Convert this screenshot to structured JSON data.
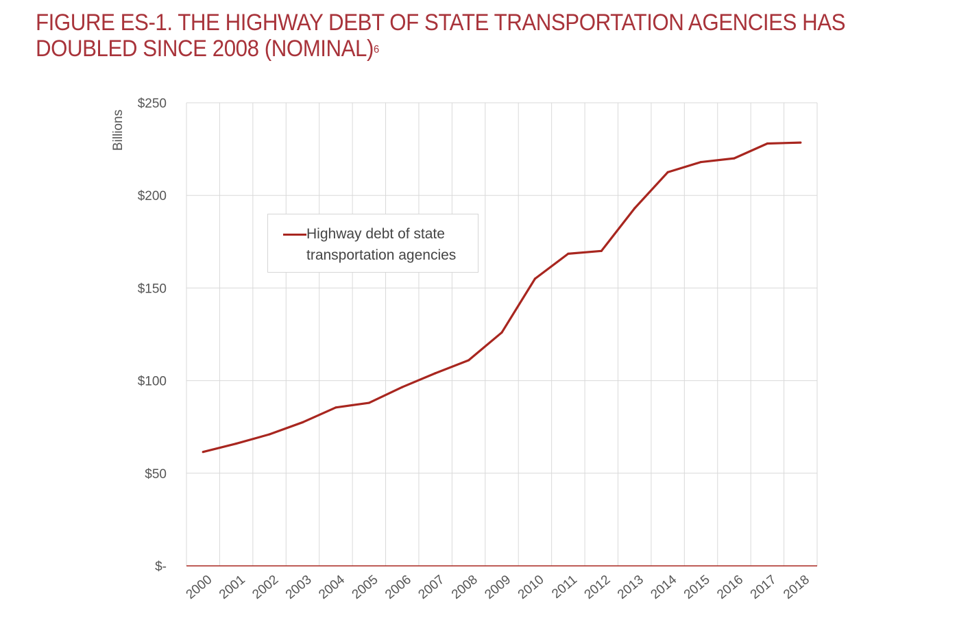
{
  "figure": {
    "title": "FIGURE ES-1. THE HIGHWAY DEBT OF STATE TRANSPORTATION AGENCIES HAS DOUBLED SINCE 2008 (NOMINAL)",
    "footnote": "6"
  },
  "chart_data": {
    "type": "line",
    "title": "FIGURE ES-1. THE HIGHWAY DEBT OF STATE TRANSPORTATION AGENCIES HAS DOUBLED SINCE 2008 (NOMINAL)",
    "xlabel": "",
    "ylabel": "Billions",
    "categories": [
      "2000",
      "2001",
      "2002",
      "2003",
      "2004",
      "2005",
      "2006",
      "2007",
      "2008",
      "2009",
      "2010",
      "2011",
      "2012",
      "2013",
      "2014",
      "2015",
      "2016",
      "2017",
      "2018"
    ],
    "y_ticks": [
      "$-",
      "$50",
      "$100",
      "$150",
      "$200",
      "$250"
    ],
    "y_tick_values": [
      0,
      50,
      100,
      150,
      200,
      250
    ],
    "ylim": [
      0,
      250
    ],
    "grid": true,
    "legend_position": "upper-left",
    "color": "#a8261f",
    "series": [
      {
        "name": "Highway debt of state transportation agencies",
        "values": [
          61.5,
          66,
          71,
          77.5,
          85.5,
          88,
          96.5,
          104,
          111,
          126,
          155,
          168.5,
          170,
          193,
          212.5,
          218,
          220,
          228,
          228.5
        ]
      }
    ]
  },
  "legend": {
    "line1": "Highway debt of state",
    "line2": "transportation agencies"
  }
}
